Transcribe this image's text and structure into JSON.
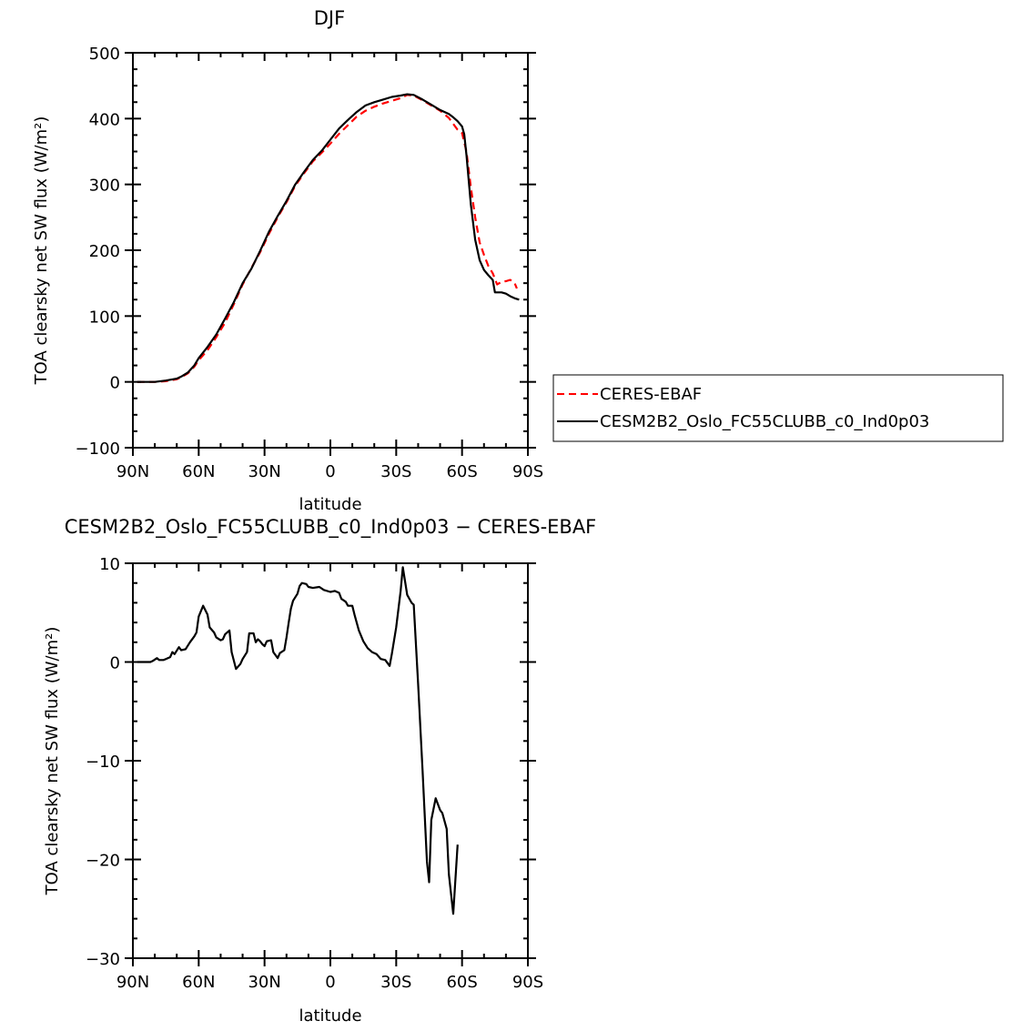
{
  "chart_data": [
    {
      "type": "line",
      "title": "DJF",
      "xlabel": "latitude",
      "ylabel": "TOA clearsky net SW flux (W/m²)",
      "xlim": [
        90,
        -90
      ],
      "ylim": [
        -100,
        500
      ],
      "xticks": [
        90,
        60,
        30,
        0,
        -30,
        -60,
        -90
      ],
      "xtick_labels": [
        "90N",
        "60N",
        "30N",
        "0",
        "30S",
        "60S",
        "90S"
      ],
      "yticks": [
        -100,
        0,
        100,
        200,
        300,
        400,
        500
      ],
      "ytick_labels": [
        "−100",
        "0",
        "100",
        "200",
        "300",
        "400",
        "500"
      ],
      "grid": false,
      "legend_position": "right",
      "series": [
        {
          "name": "CERES-EBAF",
          "color": "#ff0000",
          "dash": "dashed",
          "points": [
            [
              88,
              0
            ],
            [
              85,
              0
            ],
            [
              80,
              0
            ],
            [
              75,
              1
            ],
            [
              70,
              4
            ],
            [
              68,
              7
            ],
            [
              65,
              13
            ],
            [
              62,
              23
            ],
            [
              60,
              33
            ],
            [
              56,
              48
            ],
            [
              52,
              68
            ],
            [
              48,
              90
            ],
            [
              44,
              118
            ],
            [
              40,
              148
            ],
            [
              36,
              173
            ],
            [
              32,
              197
            ],
            [
              28,
              225
            ],
            [
              24,
              250
            ],
            [
              20,
              273
            ],
            [
              16,
              298
            ],
            [
              12,
              317
            ],
            [
              8,
              335
            ],
            [
              4,
              348
            ],
            [
              0,
              362
            ],
            [
              -4,
              377
            ],
            [
              -8,
              390
            ],
            [
              -12,
              403
            ],
            [
              -16,
              412
            ],
            [
              -20,
              418
            ],
            [
              -24,
              423
            ],
            [
              -28,
              427
            ],
            [
              -32,
              431
            ],
            [
              -35,
              436
            ],
            [
              -38,
              435
            ],
            [
              -42,
              428
            ],
            [
              -46,
              420
            ],
            [
              -50,
              412
            ],
            [
              -54,
              401
            ],
            [
              -56,
              392
            ],
            [
              -58,
              383
            ],
            [
              -60,
              378
            ],
            [
              -62,
              350
            ],
            [
              -64,
              296
            ],
            [
              -66,
              250
            ],
            [
              -68,
              212
            ],
            [
              -70,
              193
            ],
            [
              -72,
              176
            ],
            [
              -74,
              165
            ],
            [
              -76,
              148
            ],
            [
              -78,
              152
            ],
            [
              -80,
              153
            ],
            [
              -82,
              155
            ],
            [
              -84,
              150
            ],
            [
              -85,
              142
            ]
          ]
        },
        {
          "name": "CESM2B2_Oslo_FC55CLUBB_c0_Ind0p03",
          "color": "#000000",
          "dash": "solid",
          "points": [
            [
              88,
              0
            ],
            [
              85,
              0
            ],
            [
              80,
              0
            ],
            [
              75,
              2
            ],
            [
              70,
              5
            ],
            [
              68,
              8
            ],
            [
              65,
              14
            ],
            [
              62,
              25
            ],
            [
              60,
              36
            ],
            [
              56,
              53
            ],
            [
              52,
              72
            ],
            [
              48,
              96
            ],
            [
              44,
              121
            ],
            [
              40,
              150
            ],
            [
              36,
              172
            ],
            [
              32,
              199
            ],
            [
              28,
              228
            ],
            [
              24,
              252
            ],
            [
              20,
              275
            ],
            [
              16,
              300
            ],
            [
              12,
              319
            ],
            [
              8,
              337
            ],
            [
              4,
              351
            ],
            [
              0,
              368
            ],
            [
              -4,
              385
            ],
            [
              -8,
              398
            ],
            [
              -12,
              410
            ],
            [
              -16,
              420
            ],
            [
              -20,
              425
            ],
            [
              -24,
              429
            ],
            [
              -28,
              433
            ],
            [
              -32,
              435
            ],
            [
              -35,
              437
            ],
            [
              -38,
              436
            ],
            [
              -42,
              429
            ],
            [
              -46,
              421
            ],
            [
              -50,
              413
            ],
            [
              -54,
              407
            ],
            [
              -56,
              402
            ],
            [
              -58,
              396
            ],
            [
              -60,
              388
            ],
            [
              -61,
              376
            ],
            [
              -62,
              345
            ],
            [
              -64,
              270
            ],
            [
              -66,
              216
            ],
            [
              -68,
              185
            ],
            [
              -70,
              170
            ],
            [
              -72,
              162
            ],
            [
              -74,
              155
            ],
            [
              -75,
              136
            ],
            [
              -78,
              136
            ],
            [
              -80,
              134
            ],
            [
              -82,
              130
            ],
            [
              -84,
              127
            ],
            [
              -86,
              125
            ]
          ]
        }
      ]
    },
    {
      "type": "line",
      "title": "CESM2B2_Oslo_FC55CLUBB_c0_Ind0p03 − CERES-EBAF",
      "xlabel": "latitude",
      "ylabel": "TOA clearsky net SW flux (W/m²)",
      "xlim": [
        90,
        -90
      ],
      "ylim": [
        -30,
        10
      ],
      "xticks": [
        90,
        60,
        30,
        0,
        -30,
        -60,
        -90
      ],
      "xtick_labels": [
        "90N",
        "60N",
        "30N",
        "0",
        "30S",
        "60S",
        "90S"
      ],
      "yticks": [
        -30,
        -20,
        -10,
        0,
        10
      ],
      "ytick_labels": [
        "−30",
        "−20",
        "−10",
        "0",
        "10"
      ],
      "grid": false,
      "series": [
        {
          "color": "#000000",
          "dash": "solid",
          "points": [
            [
              88,
              0
            ],
            [
              84,
              0
            ],
            [
              82,
              0
            ],
            [
              81,
              0.1
            ],
            [
              79,
              0.4
            ],
            [
              78,
              0.2
            ],
            [
              76,
              0.2
            ],
            [
              75,
              0.3
            ],
            [
              73,
              0.5
            ],
            [
              72,
              1.0
            ],
            [
              71,
              0.8
            ],
            [
              69,
              1.5
            ],
            [
              68,
              1.2
            ],
            [
              66,
              1.3
            ],
            [
              64,
              2.0
            ],
            [
              62,
              2.6
            ],
            [
              61,
              3.0
            ],
            [
              60,
              4.6
            ],
            [
              58,
              5.7
            ],
            [
              56,
              4.8
            ],
            [
              55,
              3.5
            ],
            [
              53,
              3.0
            ],
            [
              52,
              2.5
            ],
            [
              50,
              2.2
            ],
            [
              49,
              2.3
            ],
            [
              48,
              2.8
            ],
            [
              46,
              3.2
            ],
            [
              45,
              1.0
            ],
            [
              43,
              -0.7
            ],
            [
              41,
              -0.2
            ],
            [
              40,
              0.3
            ],
            [
              38,
              1.0
            ],
            [
              37,
              2.9
            ],
            [
              35,
              2.9
            ],
            [
              34,
              2.0
            ],
            [
              33,
              2.3
            ],
            [
              32,
              2.1
            ],
            [
              31,
              1.8
            ],
            [
              30,
              1.6
            ],
            [
              29,
              2.1
            ],
            [
              27,
              2.2
            ],
            [
              26,
              1.0
            ],
            [
              24,
              0.4
            ],
            [
              23,
              0.9
            ],
            [
              21,
              1.2
            ],
            [
              20,
              2.5
            ],
            [
              19,
              4.0
            ],
            [
              18,
              5.4
            ],
            [
              17,
              6.2
            ],
            [
              15,
              6.9
            ],
            [
              14,
              7.7
            ],
            [
              13,
              8.0
            ],
            [
              11,
              7.9
            ],
            [
              10,
              7.6
            ],
            [
              8,
              7.5
            ],
            [
              5,
              7.6
            ],
            [
              3,
              7.3
            ],
            [
              0,
              7.1
            ],
            [
              -2,
              7.2
            ],
            [
              -4,
              7.0
            ],
            [
              -5,
              6.4
            ],
            [
              -7,
              6.1
            ],
            [
              -8,
              5.7
            ],
            [
              -10,
              5.7
            ],
            [
              -11,
              4.8
            ],
            [
              -13,
              3.2
            ],
            [
              -15,
              2.1
            ],
            [
              -17,
              1.4
            ],
            [
              -19,
              1.0
            ],
            [
              -21,
              0.8
            ],
            [
              -23,
              0.3
            ],
            [
              -25,
              0.2
            ],
            [
              -27,
              -0.4
            ],
            [
              -28,
              0.8
            ],
            [
              -30,
              3.5
            ],
            [
              -32,
              7.2
            ],
            [
              -33,
              9.6
            ],
            [
              -35,
              6.8
            ],
            [
              -37,
              6.0
            ],
            [
              -38,
              5.8
            ],
            [
              -40,
              -2.2
            ],
            [
              -42,
              -11.0
            ],
            [
              -44,
              -20.2
            ],
            [
              -45,
              -22.3
            ],
            [
              -46,
              -16.0
            ],
            [
              -48,
              -13.8
            ],
            [
              -50,
              -15.0
            ],
            [
              -51,
              -15.3
            ],
            [
              -53,
              -16.9
            ],
            [
              -54,
              -21.5
            ],
            [
              -56,
              -25.5
            ],
            [
              -58,
              -18.5
            ]
          ]
        }
      ]
    }
  ]
}
